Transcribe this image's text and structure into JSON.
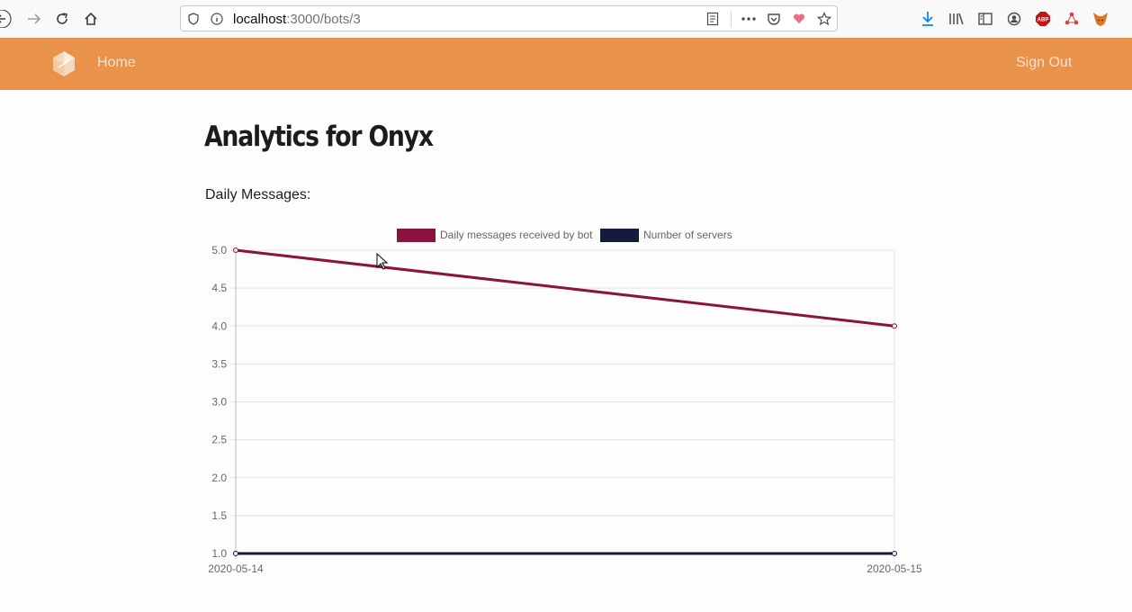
{
  "browser": {
    "url_host": "localhost",
    "url_rest": ":3000/bots/3"
  },
  "navbar": {
    "home_label": "Home",
    "signout_label": "Sign Out"
  },
  "page": {
    "title": "Analytics for Onyx",
    "section_label": "Daily Messages:"
  },
  "colors": {
    "navbar": "#e8924b",
    "series_messages": "#8b1340",
    "series_servers": "#141b3d"
  },
  "chart_data": {
    "type": "line",
    "x": [
      "2020-05-14",
      "2020-05-15"
    ],
    "series": [
      {
        "name": "Daily messages received by bot",
        "values": [
          5,
          4
        ],
        "color": "#8b1340"
      },
      {
        "name": "Number of servers",
        "values": [
          1,
          1
        ],
        "color": "#141b3d"
      }
    ],
    "ylim": [
      1.0,
      5.0
    ],
    "yticks": [
      "5.0",
      "4.5",
      "4.0",
      "3.5",
      "3.0",
      "2.5",
      "2.0",
      "1.5",
      "1.0"
    ],
    "grid": true,
    "legend": "top"
  }
}
